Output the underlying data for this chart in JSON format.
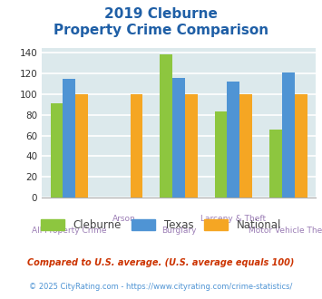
{
  "title_line1": "2019 Cleburne",
  "title_line2": "Property Crime Comparison",
  "categories": [
    "All Property Crime",
    "Arson",
    "Burglary",
    "Larceny & Theft",
    "Motor Vehicle Theft"
  ],
  "x_labels_top": [
    "",
    "Arson",
    "",
    "Larceny & Theft",
    ""
  ],
  "x_labels_bottom": [
    "All Property Crime",
    "",
    "Burglary",
    "",
    "Motor Vehicle Theft"
  ],
  "series": {
    "Cleburne": [
      91,
      null,
      139,
      83,
      66
    ],
    "Texas": [
      115,
      null,
      116,
      112,
      121
    ],
    "National": [
      100,
      100,
      100,
      100,
      100
    ]
  },
  "colors": {
    "Cleburne": "#8dc63f",
    "Texas": "#4f94d4",
    "National": "#f5a623"
  },
  "ylim": [
    0,
    145
  ],
  "yticks": [
    0,
    20,
    40,
    60,
    80,
    100,
    120,
    140
  ],
  "plot_bg": "#dce9ec",
  "grid_color": "#ffffff",
  "title_color": "#1f5fa6",
  "xlabel_color": "#9b7db5",
  "legend_label_color": "#444444",
  "footnote1": "Compared to U.S. average. (U.S. average equals 100)",
  "footnote2": "© 2025 CityRating.com - https://www.cityrating.com/crime-statistics/",
  "footnote1_color": "#cc3300",
  "footnote2_color": "#4f94d4"
}
